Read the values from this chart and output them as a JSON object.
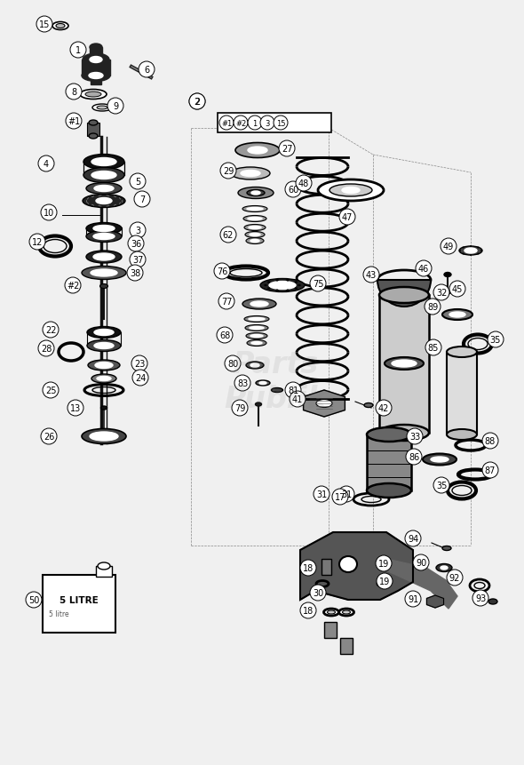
{
  "bg_color": "#f5f5f5",
  "fig_width": 5.9,
  "fig_height": 8.62,
  "dpi": 100
}
